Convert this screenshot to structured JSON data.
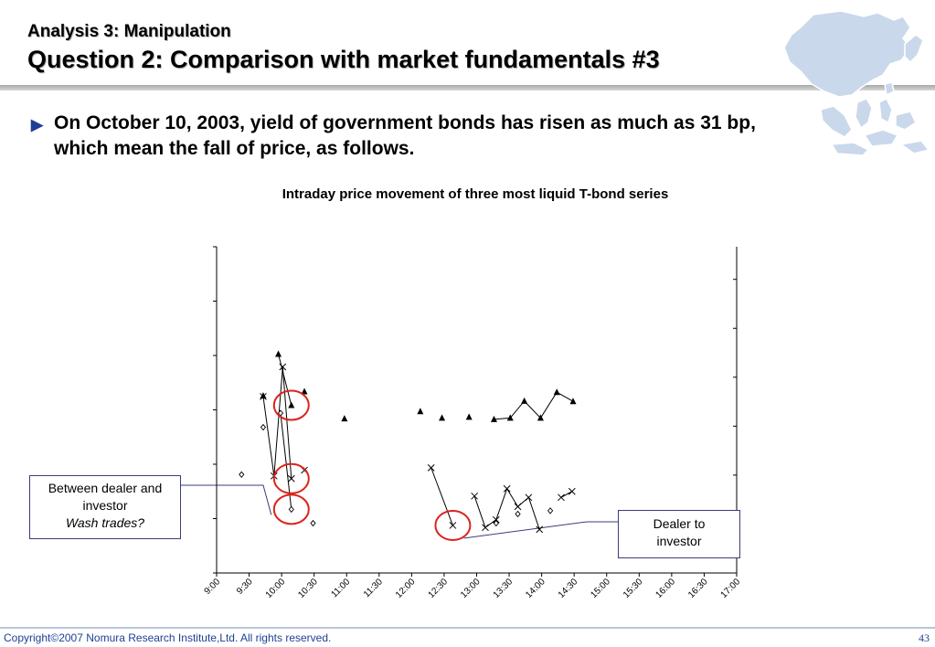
{
  "header": {
    "subtitle": "Analysis 3: Manipulation",
    "title": "Question 2: Comparison with market fundamentals #3"
  },
  "bullet": {
    "text": "On October 10, 2003, yield of government bonds has risen as much as 31 bp, which mean the fall of price, as follows."
  },
  "chart_data": {
    "type": "scatter",
    "title": "Intraday price movement of three most liquid T-bond series",
    "x_ticks": [
      "9:00",
      "9:30",
      "10:00",
      "10:30",
      "11:00",
      "11:30",
      "12:00",
      "12:30",
      "13:00",
      "13:30",
      "14:00",
      "14:30",
      "15:00",
      "15:30",
      "16:00",
      "16:30",
      "17:00"
    ],
    "y_tick_labels": [],
    "x_unit": "minutes from 9:00",
    "y_range_left": [
      0,
      12
    ],
    "y_range_right": [
      0,
      10
    ],
    "grid": false,
    "series": [
      {
        "marker": "triangle",
        "axis": "right",
        "points": [
          [
            43,
            5.43
          ],
          [
            57,
            6.71
          ],
          [
            69,
            5.14
          ],
          [
            81,
            5.56
          ],
          [
            118,
            4.73
          ],
          [
            188,
            4.95
          ],
          [
            208,
            4.75
          ],
          [
            233,
            4.78
          ],
          [
            256,
            4.71
          ],
          [
            271,
            4.75
          ],
          [
            284,
            5.27
          ],
          [
            299,
            4.75
          ],
          [
            314,
            5.54
          ],
          [
            329,
            5.26
          ]
        ],
        "lines": [
          [
            [
              57,
              6.71
            ],
            [
              69,
              5.14
            ]
          ],
          [
            [
              256,
              4.71
            ],
            [
              271,
              4.75
            ],
            [
              284,
              5.27
            ],
            [
              299,
              4.75
            ],
            [
              314,
              5.54
            ],
            [
              329,
              5.26
            ]
          ]
        ]
      },
      {
        "marker": "x",
        "axis": "left",
        "points": [
          [
            43,
            6.49
          ],
          [
            53,
            3.57
          ],
          [
            61,
            7.58
          ],
          [
            69,
            3.47
          ],
          [
            81,
            3.78
          ],
          [
            198,
            3.87
          ],
          [
            218,
            1.75
          ],
          [
            238,
            2.83
          ],
          [
            248,
            1.67
          ],
          [
            258,
            1.96
          ],
          [
            268,
            3.1
          ],
          [
            278,
            2.44
          ],
          [
            288,
            2.78
          ],
          [
            298,
            1.6
          ],
          [
            318,
            2.78
          ],
          [
            328,
            3.0
          ]
        ],
        "lines": [
          [
            [
              43,
              6.49
            ],
            [
              53,
              3.57
            ],
            [
              61,
              7.58
            ],
            [
              69,
              3.47
            ]
          ],
          [
            [
              198,
              3.87
            ],
            [
              218,
              1.75
            ]
          ],
          [
            [
              238,
              2.83
            ],
            [
              248,
              1.67
            ],
            [
              258,
              1.96
            ],
            [
              268,
              3.1
            ],
            [
              278,
              2.44
            ],
            [
              288,
              2.78
            ],
            [
              298,
              1.6
            ]
          ],
          [
            [
              318,
              2.78
            ],
            [
              328,
              3.0
            ]
          ]
        ]
      },
      {
        "marker": "diamond",
        "axis": "left",
        "points": [
          [
            23,
            3.62
          ],
          [
            43,
            5.36
          ],
          [
            59,
            5.88
          ],
          [
            69,
            2.34
          ],
          [
            89,
            1.83
          ],
          [
            258,
            1.83
          ],
          [
            278,
            2.17
          ],
          [
            308,
            2.29
          ]
        ],
        "lines": [
          [
            [
              59,
              5.88
            ],
            [
              69,
              2.34
            ]
          ]
        ]
      }
    ],
    "highlights": [
      {
        "x": 69,
        "y": 5.14,
        "axis": "right"
      },
      {
        "x": 69,
        "y": 3.47,
        "axis": "left"
      },
      {
        "x": 69,
        "y": 2.34,
        "axis": "left"
      },
      {
        "x": 218,
        "y": 1.75,
        "axis": "left"
      }
    ],
    "annotations": [
      {
        "id": "a",
        "line1": "Between dealer and",
        "line2": "investor",
        "line3": "Wash trades?",
        "points_to": {
          "x": 69,
          "y": 2.34,
          "axis": "left"
        }
      },
      {
        "id": "b",
        "line1": "Dealer to",
        "line2": "investor",
        "points_to": {
          "x": 218,
          "y": 1.75,
          "axis": "left"
        }
      }
    ],
    "colors": {
      "highlight": "#d9251d",
      "axis": "#000000",
      "callout_border": "#3b3b7a"
    }
  },
  "footer": {
    "copyright": "Copyright©2007 Nomura Research Institute,Ltd. All rights reserved.",
    "page": "43"
  }
}
